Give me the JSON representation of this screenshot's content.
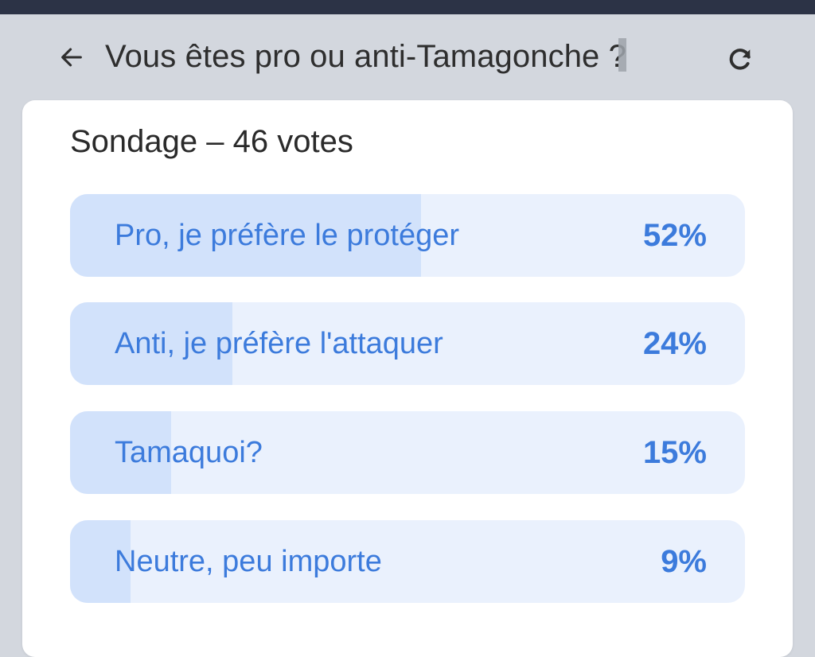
{
  "header": {
    "title": "Vous êtes pro ou anti-Tamagonche ?",
    "back_icon": "arrow-left-icon",
    "refresh_icon": "refresh-icon"
  },
  "poll": {
    "heading": "Sondage – 46 votes",
    "options": [
      {
        "label": "Pro, je préfère le protéger",
        "percent_label": "52%",
        "percent": 52
      },
      {
        "label": "Anti, je préfère l'attaquer",
        "percent_label": "24%",
        "percent": 24
      },
      {
        "label": "Tamaquoi?",
        "percent_label": "15%",
        "percent": 15
      },
      {
        "label": "Neutre, peu importe",
        "percent_label": "9%",
        "percent": 9
      }
    ]
  },
  "colors": {
    "accent": "#3c7bdc",
    "option_bg": "#eaf1fd",
    "option_fill": "#d2e2fb",
    "page_bg": "#d3d7de",
    "top_strip": "#2c3346"
  }
}
